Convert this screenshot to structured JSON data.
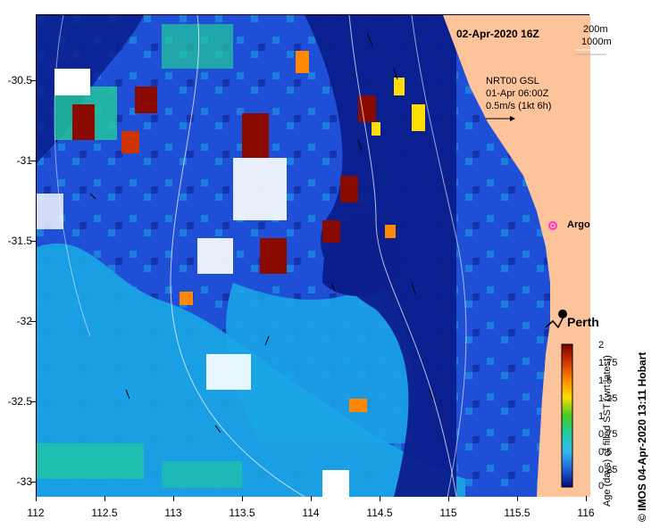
{
  "map": {
    "title": "02-Apr-2020 16Z",
    "depth_legend": [
      "200m",
      "1000m"
    ],
    "current_label": {
      "line1": "NRT00 GSL",
      "line2": "01-Apr 06:00Z",
      "line3": "0.5m/s (1kt 6h)"
    },
    "places": {
      "argo": "Argo",
      "city": "Perth"
    },
    "x_axis": {
      "ticks": [
        "112",
        "112.5",
        "113",
        "113.5",
        "114",
        "114.5",
        "115",
        "115.5",
        "116"
      ]
    },
    "y_axis": {
      "ticks": [
        "-30.5",
        "-31",
        "-31.5",
        "-32",
        "-32.5",
        "-33"
      ]
    },
    "colorbar": {
      "title": "Age (days) of filled SST (wrt latest)",
      "ticks": [
        "2",
        "1.75",
        "1.5",
        "1.25",
        "1",
        "0.75",
        "0.5",
        "0.25",
        "0"
      ],
      "colors": [
        "#7a0000",
        "#cc3300",
        "#ff8800",
        "#ffdd00",
        "#44cc22",
        "#22cc99",
        "#33bbee",
        "#2266dd",
        "#0a0a80"
      ]
    },
    "credit": "© IMOS 04-Apr-2020 13:11 Hobart"
  },
  "colors": {
    "land": "#fdc39a",
    "ocean_deep": "#0b1e8c",
    "ocean_mid": "#1e4fd6",
    "ocean_light": "#1aa6e6"
  }
}
